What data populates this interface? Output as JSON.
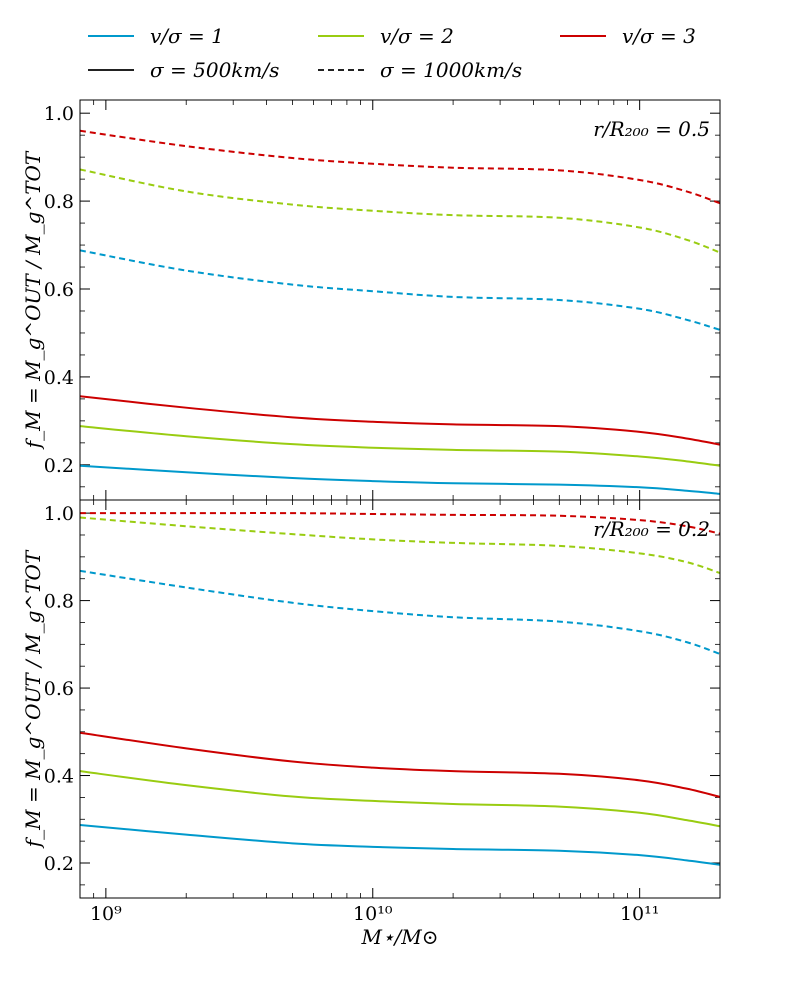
{
  "chart_data": {
    "type": "line",
    "xlabel": "M⋆/M⊙",
    "xscale": "log",
    "xlim": [
      800000000,
      200000000000
    ],
    "x_tick_labels": [
      "10⁹",
      "10¹⁰",
      "10¹¹"
    ],
    "x_tick_values": [
      1000000000,
      10000000000,
      100000000000
    ],
    "legend": {
      "position": "top",
      "colors": [
        {
          "label": "v/σ = 1",
          "color": "#0099cc"
        },
        {
          "label": "v/σ = 2",
          "color": "#99cc11"
        },
        {
          "label": "v/σ = 3",
          "color": "#cc0000"
        }
      ],
      "styles": [
        {
          "label": "σ = 500km/s",
          "dash": "solid"
        },
        {
          "label": "σ = 1000km/s",
          "dash": "dashed"
        }
      ]
    },
    "panels": [
      {
        "annotation": "r/R₂₀₀ = 0.5",
        "ylabel": "f_M = M_g^OUT / M_g^TOT",
        "ylim": [
          0.12,
          1.03
        ],
        "y_tick_values": [
          0.2,
          0.4,
          0.6,
          0.8,
          1.0
        ],
        "y_tick_labels": [
          "0.2",
          "0.4",
          "0.6",
          "0.8",
          "1.0"
        ],
        "x": [
          800000000,
          2000000000,
          5000000000,
          10000000000,
          20000000000,
          50000000000,
          100000000000,
          150000000000,
          200000000000
        ],
        "series": [
          {
            "name": "v/σ = 1, σ = 500km/s",
            "color": "#0099cc",
            "dash": "solid",
            "values": [
              0.198,
              0.183,
              0.17,
              0.163,
              0.158,
              0.155,
              0.149,
              0.141,
              0.134
            ]
          },
          {
            "name": "v/σ = 2, σ = 500km/s",
            "color": "#99cc11",
            "dash": "solid",
            "values": [
              0.288,
              0.265,
              0.247,
              0.239,
              0.234,
              0.23,
              0.219,
              0.208,
              0.198
            ]
          },
          {
            "name": "v/σ = 3, σ = 500km/s",
            "color": "#cc0000",
            "dash": "solid",
            "values": [
              0.356,
              0.33,
              0.308,
              0.298,
              0.292,
              0.288,
              0.275,
              0.26,
              0.246
            ]
          },
          {
            "name": "v/σ = 1, σ = 1000km/s",
            "color": "#0099cc",
            "dash": "dashed",
            "values": [
              0.688,
              0.642,
              0.61,
              0.595,
              0.582,
              0.575,
              0.555,
              0.53,
              0.507
            ]
          },
          {
            "name": "v/σ = 2, σ = 1000km/s",
            "color": "#99cc11",
            "dash": "dashed",
            "values": [
              0.872,
              0.822,
              0.792,
              0.778,
              0.768,
              0.762,
              0.74,
              0.712,
              0.683
            ]
          },
          {
            "name": "v/σ = 3, σ = 1000km/s",
            "color": "#cc0000",
            "dash": "dashed",
            "values": [
              0.96,
              0.925,
              0.898,
              0.885,
              0.876,
              0.87,
              0.848,
              0.822,
              0.795
            ]
          }
        ]
      },
      {
        "annotation": "r/R₂₀₀ = 0.2",
        "ylabel": "f_M = M_g^OUT / M_g^TOT",
        "ylim": [
          0.12,
          1.03
        ],
        "y_tick_values": [
          0.2,
          0.4,
          0.6,
          0.8,
          1.0
        ],
        "y_tick_labels": [
          "0.2",
          "0.4",
          "0.6",
          "0.8",
          "1.0"
        ],
        "x": [
          800000000,
          2000000000,
          5000000000,
          10000000000,
          20000000000,
          50000000000,
          100000000000,
          150000000000,
          200000000000
        ],
        "series": [
          {
            "name": "v/σ = 1, σ = 500km/s",
            "color": "#0099cc",
            "dash": "solid",
            "values": [
              0.287,
              0.265,
              0.245,
              0.237,
              0.232,
              0.228,
              0.218,
              0.206,
              0.196
            ]
          },
          {
            "name": "v/σ = 2, σ = 500km/s",
            "color": "#99cc11",
            "dash": "solid",
            "values": [
              0.41,
              0.378,
              0.352,
              0.342,
              0.335,
              0.329,
              0.315,
              0.298,
              0.284
            ]
          },
          {
            "name": "v/σ = 3, σ = 500km/s",
            "color": "#cc0000",
            "dash": "solid",
            "values": [
              0.498,
              0.462,
              0.432,
              0.418,
              0.41,
              0.404,
              0.389,
              0.37,
              0.351
            ]
          },
          {
            "name": "v/σ = 1, σ = 1000km/s",
            "color": "#0099cc",
            "dash": "dashed",
            "values": [
              0.868,
              0.83,
              0.795,
              0.776,
              0.762,
              0.752,
              0.73,
              0.705,
              0.678
            ]
          },
          {
            "name": "v/σ = 2, σ = 1000km/s",
            "color": "#99cc11",
            "dash": "dashed",
            "values": [
              0.99,
              0.97,
              0.952,
              0.94,
              0.932,
              0.925,
              0.908,
              0.888,
              0.863
            ]
          },
          {
            "name": "v/σ = 3, σ = 1000km/s",
            "color": "#cc0000",
            "dash": "dashed",
            "values": [
              1.0,
              1.0,
              1.0,
              0.998,
              0.996,
              0.994,
              0.984,
              0.97,
              0.953
            ]
          }
        ]
      }
    ]
  }
}
